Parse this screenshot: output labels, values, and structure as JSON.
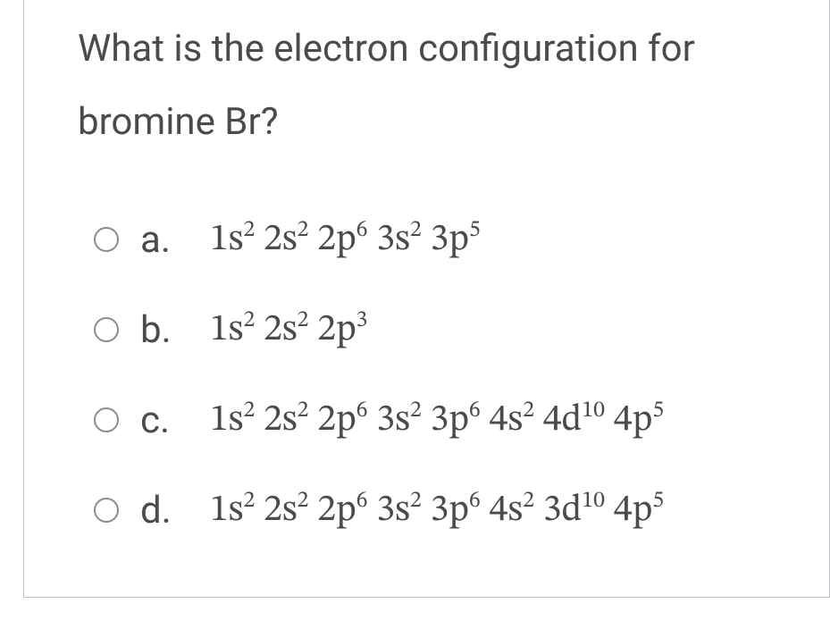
{
  "question_line1": "What is the electron configuration for",
  "question_line2": "bromine Br?",
  "options": {
    "a": {
      "letter": "a.",
      "terms": [
        [
          "1s",
          "2"
        ],
        [
          "2s",
          "2"
        ],
        [
          "2p",
          "6"
        ],
        [
          "3s",
          "2"
        ],
        [
          "3p",
          "5"
        ]
      ]
    },
    "b": {
      "letter": "b.",
      "terms": [
        [
          "1s",
          "2"
        ],
        [
          "2s",
          "2"
        ],
        [
          "2p",
          "3"
        ]
      ]
    },
    "c": {
      "letter": "c.",
      "terms": [
        [
          "1s",
          "2"
        ],
        [
          "2s",
          "2"
        ],
        [
          "2p",
          "6"
        ],
        [
          "3s",
          "2"
        ],
        [
          "3p",
          "6"
        ],
        [
          "4s",
          "2"
        ],
        [
          "4d",
          "10"
        ],
        [
          "4p",
          "5"
        ]
      ]
    },
    "d": {
      "letter": "d.",
      "terms": [
        [
          "1s",
          "2"
        ],
        [
          "2s",
          "2"
        ],
        [
          "2p",
          "6"
        ],
        [
          "3s",
          "2"
        ],
        [
          "3p",
          "6"
        ],
        [
          "4s",
          "2"
        ],
        [
          "3d",
          "10"
        ],
        [
          "4p",
          "5"
        ]
      ]
    }
  }
}
